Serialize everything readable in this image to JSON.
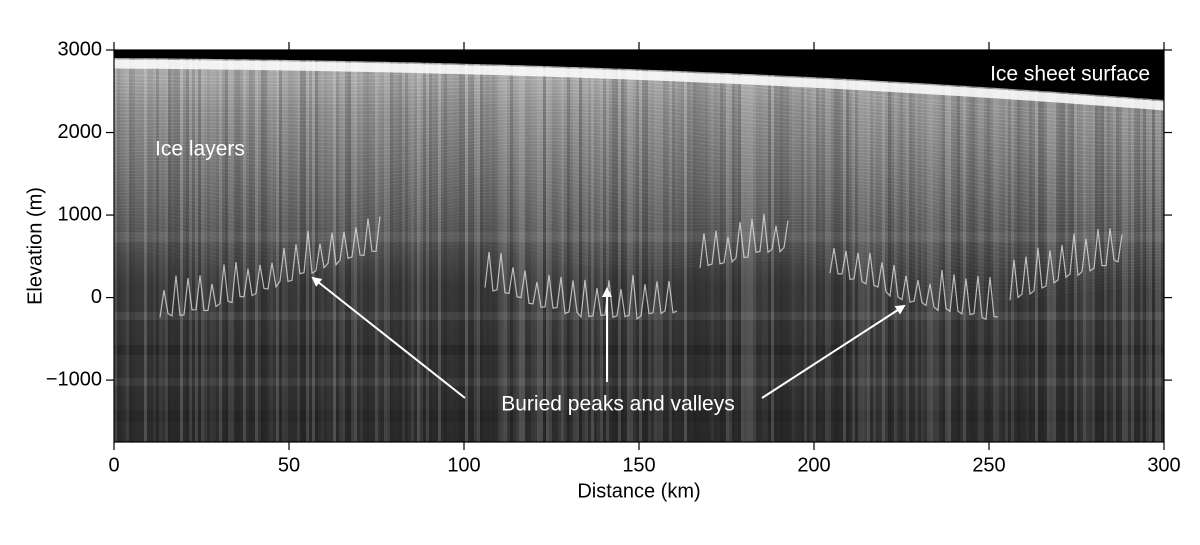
{
  "chart_data": {
    "type": "radargram",
    "xlabel": "Distance (km)",
    "ylabel": "Elevation (m)",
    "xlim": [
      0,
      300
    ],
    "ylim": [
      -1750,
      3000
    ],
    "xticks": [
      0,
      50,
      100,
      150,
      200,
      250,
      300
    ],
    "yticks": [
      {
        "value": -1000,
        "label": "−1000"
      },
      0,
      1000,
      2000,
      3000
    ],
    "annotations": [
      "Ice sheet surface",
      "Ice layers",
      "Buried peaks and valleys"
    ]
  }
}
